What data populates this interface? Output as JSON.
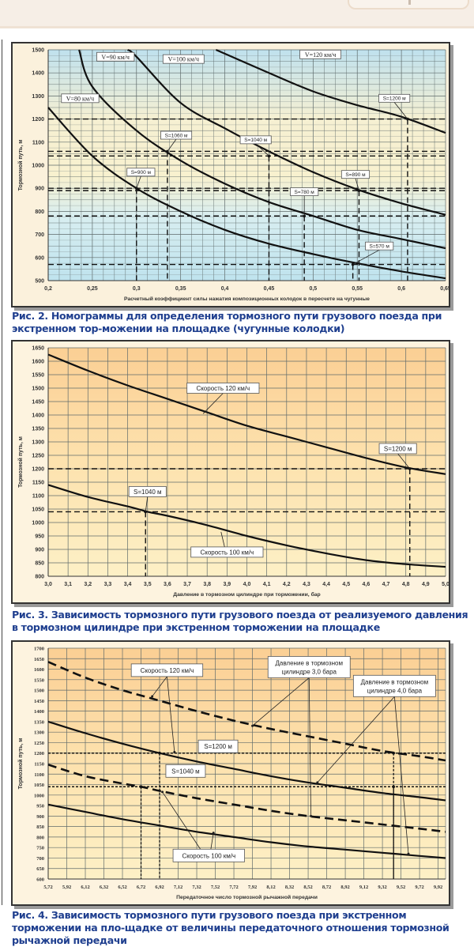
{
  "page": {
    "captions": [
      "Рис. 2. Номограммы для определения тормозного пути грузового поезда при экстренном тор-можении на площадке (чугунные колодки)",
      "Рис. 3. Зависимость тормозного пути грузового поезда от реализуемого давления в тормозном цилиндре при экстренном торможении на площадке",
      "Рис. 4. Зависимость тормозного пути грузового поезда при экстренном торможении на пло-щадке от величины передаточного отношения тормозной рычажной передачи"
    ]
  },
  "chart_data": [
    {
      "type": "line",
      "title": "Рис. 2",
      "xlabel": "Расчетный коэффициент силы нажатия композиционных колодок в пересчете на чугунные",
      "ylabel": "Тормозной путь, м",
      "xlim": [
        0.2,
        0.65
      ],
      "ylim": [
        500,
        1500
      ],
      "xticks": [
        0.2,
        0.25,
        0.3,
        0.35,
        0.4,
        0.45,
        0.5,
        0.55,
        0.6,
        0.65
      ],
      "xtick_labels": [
        "0,2",
        "0,25",
        "0,3",
        "0,35",
        "0,4",
        "0,45",
        "0,5",
        "0,55",
        "0,6",
        "0,65"
      ],
      "yticks": [
        500,
        600,
        700,
        800,
        900,
        1000,
        1100,
        1200,
        1300,
        1400,
        1500
      ],
      "ytick_labels": [
        "500",
        "600",
        "700",
        "800",
        "900",
        "1000",
        "1100",
        "1200",
        "1300",
        "1400",
        "1500"
      ],
      "grid": true,
      "series": [
        {
          "name": "V=80 км/ч",
          "style": "solid",
          "x": [
            0.2,
            0.25,
            0.3,
            0.35,
            0.4,
            0.45,
            0.5,
            0.55,
            0.6,
            0.65
          ],
          "y": [
            1250,
            1040,
            900,
            800,
            720,
            660,
            615,
            575,
            540,
            510
          ]
        },
        {
          "name": "V=90 км/ч",
          "style": "solid",
          "x": [
            0.235,
            0.25,
            0.3,
            0.35,
            0.4,
            0.45,
            0.5,
            0.55,
            0.6,
            0.65
          ],
          "y": [
            1500,
            1340,
            1150,
            1020,
            920,
            840,
            780,
            720,
            680,
            640
          ]
        },
        {
          "name": "V=100 км/ч",
          "style": "solid",
          "x": [
            0.29,
            0.3,
            0.35,
            0.4,
            0.45,
            0.5,
            0.55,
            0.6,
            0.65
          ],
          "y": [
            1500,
            1470,
            1270,
            1160,
            1060,
            970,
            895,
            835,
            785
          ]
        },
        {
          "name": "V=120 км/ч",
          "style": "solid",
          "x": [
            0.39,
            0.45,
            0.5,
            0.55,
            0.6,
            0.65
          ],
          "y": [
            1500,
            1400,
            1320,
            1260,
            1210,
            1140
          ]
        }
      ],
      "curve_labels": [
        {
          "text": "V=90 км/ч",
          "x": 0.255,
          "y": 1470
        },
        {
          "text": "V=100 км/ч",
          "x": 0.33,
          "y": 1460
        },
        {
          "text": "V=80 км/ч",
          "x": 0.215,
          "y": 1290
        },
        {
          "text": "V=120 км/ч",
          "x": 0.485,
          "y": 1480
        }
      ],
      "reference_lines": [
        {
          "y": 1200,
          "x": 0.607
        },
        {
          "y": 1060,
          "x": 0.335
        },
        {
          "y": 1040,
          "x": 0.45
        },
        {
          "y": 900,
          "x": 0.3
        },
        {
          "y": 890,
          "x": 0.552
        },
        {
          "y": 780,
          "x": 0.49
        },
        {
          "y": 570,
          "x": 0.545
        }
      ],
      "annotations": [
        {
          "text": "S=1200 м",
          "x": 0.607,
          "y": 1200,
          "lx": 0.592,
          "ly": 1290
        },
        {
          "text": "S=1060 м",
          "x": 0.335,
          "y": 1060,
          "lx": 0.345,
          "ly": 1130
        },
        {
          "text": "S=1040 м",
          "x": 0.45,
          "y": 1040,
          "lx": 0.435,
          "ly": 1110
        },
        {
          "text": "S=900 м",
          "x": 0.3,
          "y": 900,
          "lx": 0.305,
          "ly": 970
        },
        {
          "text": "S=890 м",
          "x": 0.552,
          "y": 890,
          "lx": 0.548,
          "ly": 960
        },
        {
          "text": "S=780 м",
          "x": 0.49,
          "y": 780,
          "lx": 0.49,
          "ly": 885
        },
        {
          "text": "S=570 м",
          "x": 0.545,
          "y": 570,
          "lx": 0.575,
          "ly": 650
        }
      ]
    },
    {
      "type": "line",
      "title": "Рис. 3",
      "xlabel": "Давление в тормозном цилиндре при торможении, бар",
      "ylabel": "Тормозной путь, м",
      "xlim": [
        3.0,
        5.0
      ],
      "ylim": [
        800,
        1650
      ],
      "xticks": [
        3.0,
        3.1,
        3.2,
        3.3,
        3.4,
        3.5,
        3.6,
        3.7,
        3.8,
        3.9,
        4.0,
        4.1,
        4.2,
        4.3,
        4.4,
        4.5,
        4.6,
        4.7,
        4.8,
        4.9,
        5.0
      ],
      "xtick_labels": [
        "3,0",
        "3,1",
        "3,2",
        "3,3",
        "3,4",
        "3,5",
        "3,6",
        "3,7",
        "3,8",
        "3,9",
        "4,0",
        "4,1",
        "4,2",
        "4,3",
        "4,4",
        "4,5",
        "4,6",
        "4,7",
        "4,8",
        "4,9",
        "5,0"
      ],
      "yticks": [
        800,
        850,
        900,
        950,
        1000,
        1050,
        1100,
        1150,
        1200,
        1250,
        1300,
        1350,
        1400,
        1450,
        1500,
        1550,
        1600,
        1650
      ],
      "ytick_labels": [
        "800",
        "850",
        "900",
        "950",
        "1000",
        "1050",
        "1100",
        "1150",
        "1200",
        "1250",
        "1300",
        "1350",
        "1400",
        "1450",
        "1500",
        "1550",
        "1600",
        "1650"
      ],
      "grid": true,
      "series": [
        {
          "name": "Скорость 120 км/ч",
          "style": "solid",
          "x": [
            3.0,
            3.2,
            3.4,
            3.6,
            3.8,
            4.0,
            4.2,
            4.4,
            4.6,
            4.8,
            5.0
          ],
          "y": [
            1625,
            1565,
            1510,
            1460,
            1410,
            1360,
            1320,
            1280,
            1240,
            1205,
            1180
          ]
        },
        {
          "name": "Скорость 100 км/ч",
          "style": "solid",
          "x": [
            3.0,
            3.2,
            3.4,
            3.5,
            3.6,
            3.8,
            4.0,
            4.2,
            4.4,
            4.6,
            4.8,
            5.0
          ],
          "y": [
            1140,
            1095,
            1060,
            1040,
            1025,
            990,
            950,
            915,
            885,
            860,
            845,
            835
          ]
        }
      ],
      "reference_lines": [
        {
          "y": 1200,
          "x": 4.82
        },
        {
          "y": 1040,
          "x": 3.49
        }
      ],
      "annotations": [
        {
          "text": "Скорость 120 км/ч",
          "x": 3.78,
          "y": 1405,
          "lx": 3.88,
          "ly": 1500
        },
        {
          "text": "S=1200 м",
          "x": 4.82,
          "y": 1200,
          "lx": 4.76,
          "ly": 1275
        },
        {
          "text": "S=1040 м",
          "x": 3.49,
          "y": 1040,
          "lx": 3.5,
          "ly": 1115
        },
        {
          "text": "Скорость 100 км/ч",
          "x": 3.87,
          "y": 965,
          "lx": 3.9,
          "ly": 890
        }
      ]
    },
    {
      "type": "line",
      "title": "Рис. 4",
      "xlabel": "Передаточное число тормозной рычажной передачи",
      "ylabel": "Тормозной путь, м",
      "xlim": [
        5.72,
        10.0
      ],
      "ylim": [
        600,
        1700
      ],
      "xticks": [
        5.72,
        5.92,
        6.12,
        6.32,
        6.52,
        6.72,
        6.92,
        7.12,
        7.32,
        7.52,
        7.72,
        7.92,
        8.12,
        8.32,
        8.52,
        8.72,
        8.92,
        9.12,
        9.32,
        9.52,
        9.72,
        9.92
      ],
      "xtick_labels": [
        "5,72",
        "5,92",
        "6,12",
        "6,32",
        "6,52",
        "6,72",
        "6,92",
        "7,12",
        "7,32",
        "7,52",
        "7,72",
        "7,92",
        "8,12",
        "8,32",
        "8,52",
        "8,72",
        "8,92",
        "9,12",
        "9,32",
        "9,52",
        "9,72",
        "9,92"
      ],
      "yticks": [
        600,
        650,
        700,
        750,
        800,
        850,
        900,
        950,
        1000,
        1050,
        1100,
        1150,
        1200,
        1250,
        1300,
        1350,
        1400,
        1450,
        1500,
        1550,
        1600,
        1650,
        1700
      ],
      "ytick_labels": [
        "600",
        "650",
        "700",
        "750",
        "800",
        "850",
        "900",
        "950",
        "1000",
        "1050",
        "1100",
        "1150",
        "1200",
        "1250",
        "1300",
        "1350",
        "1400",
        "1450",
        "1500",
        "1550",
        "1600",
        "1650",
        "1700"
      ],
      "grid": true,
      "series": [
        {
          "name": "120 км/ч, 3,0 бара",
          "style": "dashed",
          "x": [
            5.72,
            6.12,
            6.52,
            6.92,
            7.32,
            7.72,
            8.12,
            8.52,
            8.92,
            9.32,
            9.72,
            10.0
          ],
          "y": [
            1635,
            1560,
            1500,
            1450,
            1400,
            1355,
            1315,
            1280,
            1245,
            1210,
            1185,
            1165
          ]
        },
        {
          "name": "120 км/ч, 4,0 бара",
          "style": "solid",
          "x": [
            5.72,
            6.12,
            6.52,
            6.92,
            7.32,
            7.72,
            8.12,
            8.52,
            8.92,
            9.32,
            9.72,
            10.0
          ],
          "y": [
            1350,
            1295,
            1245,
            1200,
            1160,
            1125,
            1090,
            1060,
            1035,
            1010,
            990,
            975
          ]
        },
        {
          "name": "100 км/ч, 3,0 бара",
          "style": "dashed",
          "x": [
            5.72,
            6.12,
            6.52,
            6.72,
            6.92,
            7.32,
            7.72,
            8.12,
            8.52,
            8.92,
            9.32,
            9.72,
            10.0
          ],
          "y": [
            1145,
            1090,
            1055,
            1040,
            1020,
            985,
            955,
            925,
            900,
            880,
            860,
            840,
            825
          ]
        },
        {
          "name": "100 км/ч, 4,0 бара",
          "style": "solid",
          "x": [
            5.72,
            6.12,
            6.52,
            6.92,
            7.32,
            7.72,
            8.12,
            8.52,
            8.92,
            9.32,
            9.72,
            10.0
          ],
          "y": [
            955,
            920,
            885,
            855,
            825,
            800,
            775,
            755,
            740,
            725,
            710,
            700
          ]
        }
      ],
      "reference_lines": [
        {
          "y": 1200,
          "x": 6.92,
          "style": "dotted"
        },
        {
          "y": 1200,
          "x": 9.44,
          "style": "dotted"
        },
        {
          "y": 1040,
          "x": 6.72,
          "style": "dotted"
        },
        {
          "y": 1040,
          "x": 9.44,
          "style": "dotted"
        }
      ],
      "callouts": [
        {
          "text": [
            "Скорость 120 км/ч"
          ],
          "box": [
            7.0,
            1595
          ],
          "targets": [
            [
              6.84,
              1470
            ],
            [
              7.08,
              1205
            ]
          ]
        },
        {
          "text": [
            "Давление в тормозном",
            "цилиндре 3,0 бара"
          ],
          "box": [
            8.53,
            1610
          ],
          "targets": [
            [
              7.92,
              1330
            ],
            [
              8.55,
              900
            ]
          ]
        },
        {
          "text": [
            "Давление в тормозном",
            "цилиндре 4,0 бара"
          ],
          "box": [
            9.45,
            1520
          ],
          "targets": [
            [
              8.62,
              1060
            ],
            [
              9.6,
              720
            ]
          ]
        },
        {
          "text": [
            "Скорость 100 км/ч"
          ],
          "box": [
            7.45,
            712
          ],
          "targets": [
            [
              6.95,
              1015
            ],
            [
              7.5,
              820
            ]
          ]
        },
        {
          "text": [
            "S=1200 м"
          ],
          "box": [
            7.55,
            1232
          ],
          "targets": []
        },
        {
          "text": [
            "S=1040 м"
          ],
          "box": [
            7.2,
            1115
          ],
          "targets": []
        }
      ]
    }
  ]
}
